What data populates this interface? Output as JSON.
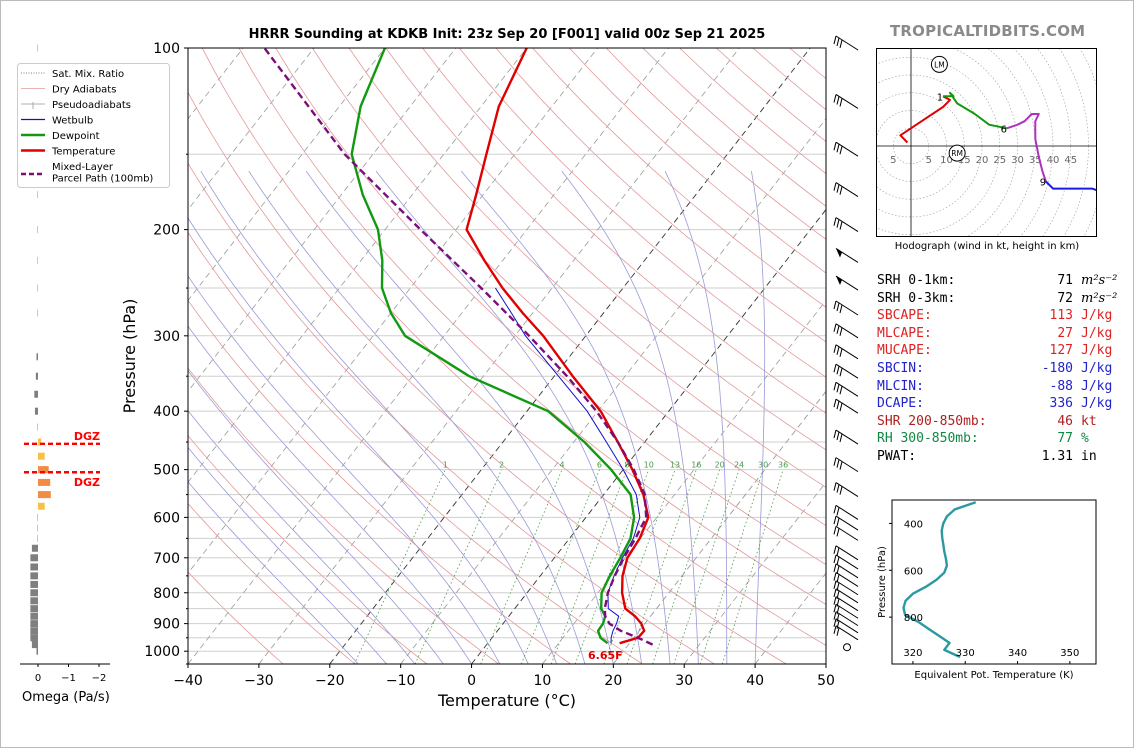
{
  "brand": "TROPICALTIDBITS.COM",
  "title": "HRRR Sounding at KDKB Init: 23z Sep 20 [F001] valid 00z Sep 21 2025",
  "colors": {
    "temperature": "#e00000",
    "dewpoint": "#119911",
    "wetbulb": "#1010cc",
    "parcel": "#7a0f7a",
    "dry_adiabat": "#e39a9a",
    "moist_adiabat": "#9a9ad8",
    "mixing_ratio": "#4a9a4a",
    "theta_e": "#2a9aa2",
    "omega_orange": "#f28c42",
    "omega_yellow": "#f5c242",
    "omega_gray": "#7f7f7f",
    "dgz": "#ff0000",
    "hodo_red": "#e00000",
    "hodo_green": "#119911",
    "hodo_magenta": "#b030c0",
    "hodo_blue": "#1a1aee"
  },
  "legend": {
    "items": [
      {
        "label": "Sat. Mix. Ratio",
        "style": "dotted",
        "color": "#555555"
      },
      {
        "label": "Dry Adiabats",
        "style": "solid-thin",
        "color": "#e39a9a"
      },
      {
        "label": "Pseudoadiabats",
        "style": "solid-thin",
        "color": "#999999"
      },
      {
        "label": "Wetbulb",
        "style": "solid",
        "color": "#1010cc"
      },
      {
        "label": "Dewpoint",
        "style": "solid-thick",
        "color": "#119911"
      },
      {
        "label": "Temperature",
        "style": "solid-thick",
        "color": "#e00000"
      },
      {
        "label": "Mixed-Layer\nParcel Path (100mb)",
        "style": "dashed-thick",
        "color": "#7a0f7a"
      }
    ]
  },
  "chart_data": [
    {
      "id": "skewt",
      "type": "line",
      "xlabel": "Temperature (°C)",
      "ylabel": "Pressure (hPa)",
      "xlim": [
        -40,
        50
      ],
      "ylim": [
        1050,
        100
      ],
      "y_scale": "log",
      "x_ticks": [
        "−40",
        "−30",
        "−20",
        "−10",
        "0",
        "10",
        "20",
        "30",
        "40",
        "50"
      ],
      "y_ticks": [
        "100",
        "200",
        "300",
        "400",
        "500",
        "600",
        "700",
        "800",
        "900",
        "1000"
      ],
      "mixing_ratio_labels": [
        "1",
        "2",
        "4",
        "6",
        "8",
        "10",
        "13",
        "16",
        "20",
        "24",
        "30",
        "36"
      ],
      "surface_label": "6.65F",
      "series": [
        {
          "name": "Temperature",
          "p": [
            970,
            950,
            925,
            900,
            875,
            850,
            800,
            750,
            700,
            650,
            600,
            550,
            500,
            450,
            400,
            350,
            300,
            275,
            250,
            225,
            200,
            175,
            150,
            125,
            100
          ],
          "t": [
            18.6,
            20.6,
            20.7,
            19.5,
            17.8,
            15.6,
            13.4,
            11.6,
            10.3,
            9.9,
            8.8,
            5.6,
            1.3,
            -3.8,
            -9.6,
            -17.4,
            -26.0,
            -31.4,
            -37.0,
            -42.6,
            -48.5,
            -51.0,
            -54.0,
            -57.5,
            -60.0
          ]
        },
        {
          "name": "Dewpoint",
          "p": [
            970,
            950,
            925,
            900,
            875,
            850,
            800,
            750,
            700,
            650,
            600,
            550,
            500,
            450,
            400,
            350,
            300,
            275,
            250,
            225,
            200,
            175,
            150,
            125,
            100
          ],
          "t": [
            16.9,
            15.3,
            14.2,
            14.1,
            13.6,
            12.2,
            10.5,
            9.8,
            9.3,
            8.6,
            6.8,
            3.8,
            -1.7,
            -8.5,
            -17.0,
            -32.0,
            -45.5,
            -50.0,
            -54.0,
            -57.0,
            -61.0,
            -67.0,
            -73.0,
            -77.0,
            -80.0
          ]
        },
        {
          "name": "Wetbulb",
          "p": [
            970,
            950,
            925,
            900,
            875,
            850,
            800,
            750,
            700,
            650,
            600,
            550,
            500,
            450,
            400,
            350,
            300,
            275,
            250
          ],
          "t": [
            17.4,
            16.8,
            16.3,
            16.0,
            15.5,
            13.2,
            11.4,
            10.4,
            9.6,
            9.0,
            7.6,
            4.6,
            0.0,
            -5.4,
            -11.5,
            -19.4,
            -28.5,
            -33.0,
            -38.0
          ]
        },
        {
          "name": "Mixed-Layer Parcel Path (100mb)",
          "p": [
            975,
            950,
            925,
            900,
            875,
            850,
            800,
            750,
            700,
            650,
            600,
            550,
            500,
            450,
            400,
            350,
            300,
            250,
            200,
            150,
            100
          ],
          "t": [
            23.4,
            20.6,
            17.4,
            15.0,
            13.6,
            12.7,
            11.4,
            10.5,
            9.8,
            9.3,
            8.5,
            5.8,
            1.5,
            -3.8,
            -10.2,
            -18.2,
            -28.0,
            -40.0,
            -55.0,
            -74.0,
            -97.0
          ]
        }
      ]
    },
    {
      "id": "omega",
      "type": "bar",
      "xlabel": "Omega (Pa/s)",
      "x_ticks": [
        "0",
        "−1",
        "−2"
      ],
      "dgz_label": "DGZ",
      "dgz_p": [
        505,
        453
      ],
      "levels_p": [
        1000,
        975,
        950,
        925,
        900,
        875,
        850,
        825,
        800,
        775,
        750,
        725,
        700,
        675,
        650,
        625,
        600,
        575,
        550,
        525,
        500,
        475,
        450,
        425,
        400,
        375,
        350,
        325,
        275,
        250,
        225,
        200,
        175,
        150,
        125,
        100
      ],
      "values": [
        0.05,
        0.2,
        0.25,
        0.25,
        0.25,
        0.25,
        0.25,
        0.25,
        0.25,
        0.25,
        0.25,
        0.25,
        0.25,
        0.2,
        0.0,
        0.0,
        0.0,
        -0.22,
        -0.42,
        -0.4,
        -0.35,
        -0.22,
        -0.1,
        0.0,
        0.1,
        0.12,
        0.07,
        0.05,
        0.0,
        0.0,
        0.0,
        0.0,
        0.0,
        0.0,
        0.0,
        0.0
      ]
    },
    {
      "id": "hodograph",
      "type": "line",
      "caption": "Hodograph (wind in kt, height in km)",
      "ring_labels_left": [
        "5"
      ],
      "ring_labels_right": [
        "5",
        "10",
        "15",
        "20",
        "25",
        "30",
        "35",
        "40",
        "45"
      ],
      "height_labels": [
        "1",
        "6",
        "9"
      ],
      "motion_labels": [
        "LM",
        "RM"
      ],
      "segments": [
        {
          "name": "0-1 km",
          "color": "hodo_red",
          "u": [
            -1,
            -3,
            3,
            9,
            11,
            9
          ],
          "v": [
            1,
            3,
            7,
            11,
            13,
            14
          ]
        },
        {
          "name": "1-6 km",
          "color": "hodo_green",
          "u": [
            9,
            12,
            11,
            13,
            18,
            22,
            27
          ],
          "v": [
            14,
            14,
            15,
            12,
            9,
            6,
            5
          ]
        },
        {
          "name": "6-9 km",
          "color": "hodo_magenta",
          "u": [
            27,
            30,
            32,
            34,
            36,
            35,
            35,
            36,
            37,
            38
          ],
          "v": [
            5,
            6,
            7,
            9,
            9,
            7,
            2,
            -3,
            -7,
            -10
          ]
        },
        {
          "name": "9+ km",
          "color": "hodo_blue",
          "u": [
            38,
            40,
            42,
            45,
            48,
            51,
            54
          ],
          "v": [
            -10,
            -12,
            -12,
            -12,
            -12,
            -12,
            -13
          ]
        }
      ],
      "lm": {
        "u": 8,
        "v": 23
      },
      "rm": {
        "u": 13,
        "v": -2
      }
    },
    {
      "id": "theta_e",
      "type": "line",
      "xlabel": "Equivalent Pot. Temperature (K)",
      "ylabel": "Pressure (hPa)",
      "xlim": [
        316,
        355
      ],
      "ylim": [
        1000,
        300
      ],
      "x_ticks": [
        "320",
        "330",
        "340",
        "350"
      ],
      "y_ticks": [
        "400",
        "600",
        "800"
      ],
      "p": [
        970,
        940,
        910,
        880,
        850,
        820,
        790,
        760,
        730,
        700,
        670,
        640,
        610,
        580,
        550,
        520,
        490,
        460,
        430,
        400,
        370,
        340,
        310
      ],
      "theta_e": [
        329.0,
        326.0,
        327.0,
        325.0,
        323.0,
        321.0,
        318.5,
        318.2,
        318.6,
        320.0,
        322.5,
        324.5,
        326.0,
        326.5,
        326.3,
        326.0,
        325.8,
        325.6,
        325.5,
        325.8,
        326.5,
        328.0,
        332.0
      ]
    }
  ],
  "stats": [
    {
      "label": "SRH 0-1km:",
      "value": "71",
      "unit": "m²s⁻²",
      "color": "#000000"
    },
    {
      "label": "SRH 0-3km:",
      "value": "72",
      "unit": "m²s⁻²",
      "color": "#000000"
    },
    {
      "label": "SBCAPE:",
      "value": "113",
      "unit": "J/kg",
      "color": "#dd2222"
    },
    {
      "label": "MLCAPE:",
      "value": "27",
      "unit": "J/kg",
      "color": "#dd2222"
    },
    {
      "label": "MUCAPE:",
      "value": "127",
      "unit": "J/kg",
      "color": "#dd2222"
    },
    {
      "label": "SBCIN:",
      "value": "-180",
      "unit": "J/kg",
      "color": "#2222cc"
    },
    {
      "label": "MLCIN:",
      "value": "-88",
      "unit": "J/kg",
      "color": "#2222cc"
    },
    {
      "label": "DCAPE:",
      "value": "336",
      "unit": "J/kg",
      "color": "#2222cc"
    },
    {
      "label": "SHR 200-850mb:",
      "value": "46",
      "unit": "kt",
      "color": "#b02020"
    },
    {
      "label": "RH 300-850mb:",
      "value": "77",
      "unit": "%",
      "color": "#118844"
    },
    {
      "label": "PWAT:",
      "value": "1.31",
      "unit": "in",
      "color": "#000000"
    }
  ]
}
